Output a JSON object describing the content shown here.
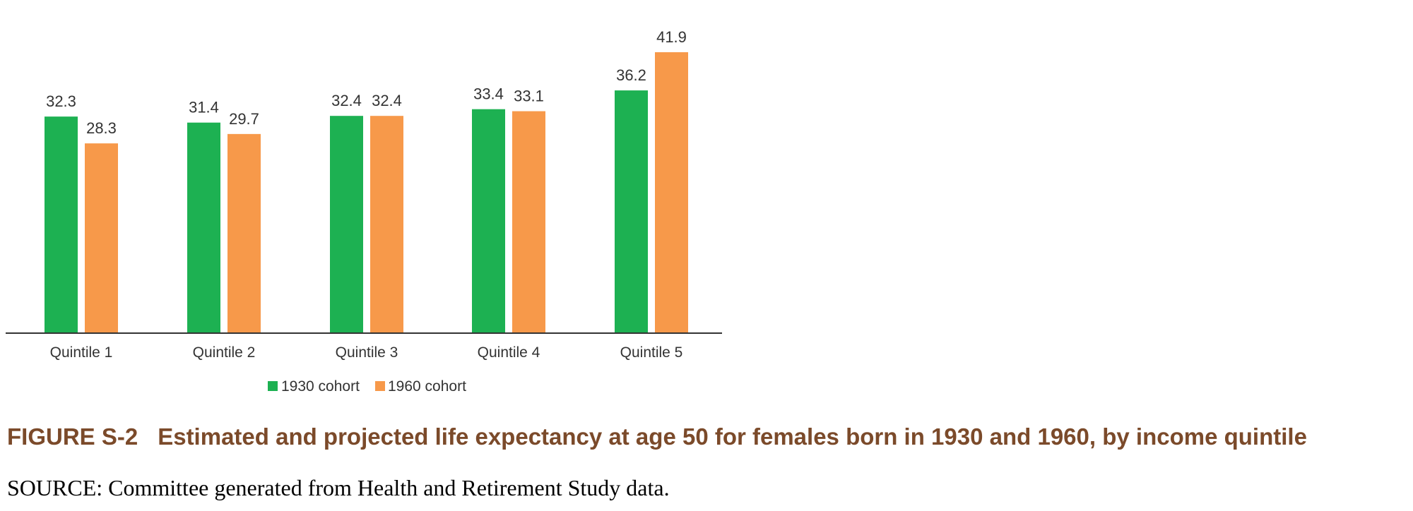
{
  "chart_data": {
    "type": "bar",
    "categories": [
      "Quintile 1",
      "Quintile 2",
      "Quintile 3",
      "Quintile 4",
      "Quintile 5"
    ],
    "series": [
      {
        "name": "1930 cohort",
        "values": [
          32.3,
          31.4,
          32.4,
          33.4,
          36.2
        ],
        "color": "#1db152"
      },
      {
        "name": "1960 cohort",
        "values": [
          28.3,
          29.7,
          32.4,
          33.1,
          41.9
        ],
        "color": "#f7994a"
      }
    ],
    "value_labels": [
      [
        "32.3",
        "31.4",
        "32.4",
        "33.4",
        "36.2"
      ],
      [
        "28.3",
        "29.7",
        "32.4",
        "33.1",
        "41.9"
      ]
    ],
    "ylim": [
      0,
      45
    ],
    "grid": false,
    "legend_position": "bottom-center"
  },
  "caption": {
    "figure_number": "FIGURE S-2",
    "title": "Estimated and projected life expectancy at age 50 for females born in 1930 and 1960, by income quintile",
    "color": "#7b4a2a"
  },
  "source": "SOURCE: Committee generated from Health and Retirement Study data."
}
